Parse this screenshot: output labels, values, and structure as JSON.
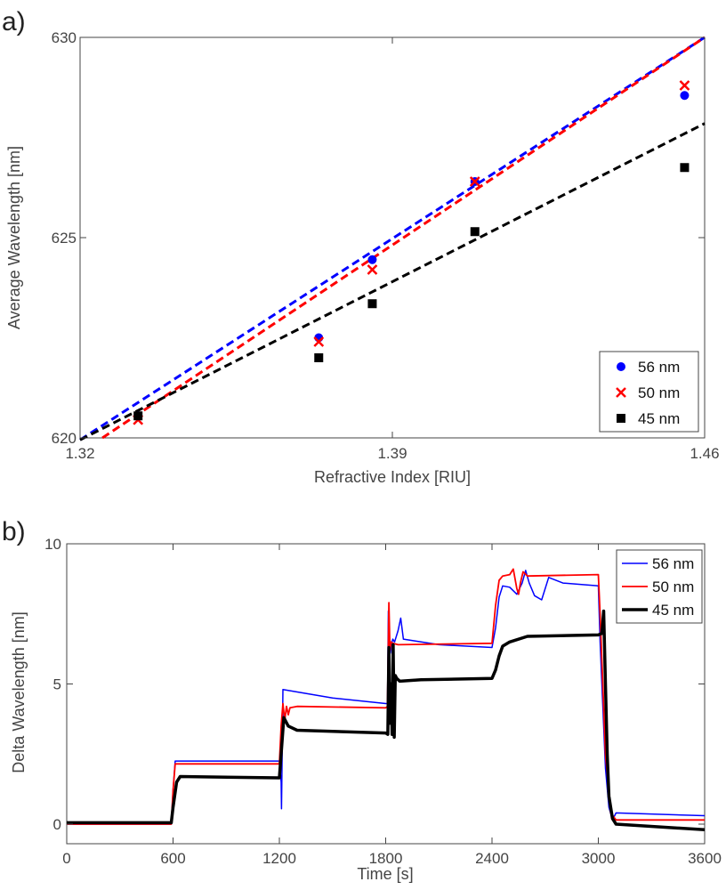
{
  "chart_data": [
    {
      "panel_label": "a)",
      "type": "scatter",
      "xlabel": "Refractive Index [RIU]",
      "ylabel": "Average Wavelength [nm]",
      "xlim": [
        1.32,
        1.46
      ],
      "ylim": [
        620,
        630
      ],
      "xticks": [
        "1.32",
        "1.39",
        "1.46"
      ],
      "yticks": [
        "620",
        "625",
        "630"
      ],
      "grid": false,
      "legend_position": "bottom-right",
      "series": [
        {
          "name": "56 nm",
          "color": "#0000ff",
          "marker": "circle",
          "x": [
            1.333,
            1.3735,
            1.3855,
            1.4085,
            1.4555
          ],
          "y": [
            620.55,
            622.5,
            624.45,
            626.4,
            628.55
          ],
          "fit": {
            "x": [
              1.32,
              1.46
            ],
            "y": [
              619.95,
              630.0
            ]
          }
        },
        {
          "name": "50 nm",
          "color": "#ff0000",
          "marker": "x",
          "x": [
            1.333,
            1.3735,
            1.3855,
            1.4085,
            1.4555
          ],
          "y": [
            620.45,
            622.4,
            624.2,
            626.4,
            628.8
          ],
          "fit": {
            "x": [
              1.325,
              1.46
            ],
            "y": [
              620.0,
              630.0
            ]
          }
        },
        {
          "name": "45 nm",
          "color": "#000000",
          "marker": "square",
          "x": [
            1.333,
            1.3735,
            1.3855,
            1.4085,
            1.4555
          ],
          "y": [
            620.55,
            622.0,
            623.35,
            625.15,
            626.75
          ],
          "fit": {
            "x": [
              1.32,
              1.46
            ],
            "y": [
              619.95,
              627.85
            ]
          }
        }
      ]
    },
    {
      "panel_label": "b)",
      "type": "line",
      "xlabel": "Time [s]",
      "ylabel": "Delta Wavelength [nm]",
      "xlim": [
        0,
        3600
      ],
      "ylim": [
        0,
        10
      ],
      "xticks": [
        "0",
        "600",
        "1200",
        "1800",
        "2400",
        "3000",
        "3600"
      ],
      "yticks": [
        "0",
        "5",
        "10"
      ],
      "grid": false,
      "legend_position": "top-right",
      "series": [
        {
          "name": "56 nm",
          "color": "#0000ff",
          "width": 1.5,
          "x": [
            0,
            590,
            600,
            612,
            1200,
            1210,
            1212,
            1220,
            1500,
            1800,
            1810,
            1815,
            1820,
            1826,
            1832,
            1840,
            1850,
            1870,
            1885,
            1900,
            2100,
            2400,
            2420,
            2440,
            2460,
            2500,
            2540,
            2570,
            2590,
            2610,
            2640,
            2680,
            2720,
            2800,
            3000,
            3010,
            3040,
            3060,
            3080,
            3100,
            3600
          ],
          "y": [
            0.0,
            0.0,
            1.2,
            2.25,
            2.25,
            1.5,
            0.55,
            4.8,
            4.5,
            4.3,
            4.3,
            7.6,
            6.4,
            6.1,
            6.4,
            6.6,
            6.5,
            6.9,
            7.35,
            6.6,
            6.4,
            6.3,
            7.0,
            8.1,
            8.5,
            8.45,
            8.2,
            8.6,
            9.05,
            8.6,
            8.15,
            8.0,
            8.8,
            8.6,
            8.5,
            6.5,
            2.0,
            0.6,
            0.15,
            0.4,
            0.3
          ]
        },
        {
          "name": "50 nm",
          "color": "#ff0000",
          "width": 1.8,
          "x": [
            0,
            590,
            600,
            612,
            1200,
            1210,
            1220,
            1230,
            1240,
            1250,
            1260,
            1300,
            1800,
            1810,
            1818,
            1824,
            1830,
            1840,
            1870,
            2400,
            2420,
            2440,
            2460,
            2500,
            2520,
            2540,
            2550,
            2560,
            2575,
            2600,
            3000,
            3010,
            3040,
            3070,
            3100,
            3600
          ],
          "y": [
            0.0,
            0.0,
            1.2,
            2.15,
            2.15,
            3.5,
            4.3,
            3.7,
            4.2,
            3.9,
            4.15,
            4.2,
            4.15,
            4.2,
            7.9,
            6.2,
            6.5,
            6.45,
            6.4,
            6.45,
            7.8,
            8.7,
            8.85,
            8.9,
            9.1,
            8.4,
            8.2,
            8.6,
            9.0,
            8.85,
            8.9,
            7.5,
            2.5,
            0.4,
            0.15,
            0.15
          ]
        },
        {
          "name": "45 nm",
          "color": "#000000",
          "width": 3.5,
          "x": [
            0,
            590,
            600,
            620,
            640,
            1200,
            1210,
            1225,
            1250,
            1300,
            1800,
            1812,
            1818,
            1824,
            1830,
            1836,
            1842,
            1848,
            1854,
            1862,
            1880,
            2000,
            2400,
            2420,
            2440,
            2460,
            2500,
            2600,
            3000,
            3020,
            3030,
            3040,
            3050,
            3060,
            3080,
            3100,
            3600
          ],
          "y": [
            0.05,
            0.05,
            0.6,
            1.5,
            1.7,
            1.65,
            2.5,
            3.8,
            3.5,
            3.35,
            3.25,
            3.2,
            6.3,
            3.6,
            5.0,
            3.2,
            6.4,
            3.1,
            5.3,
            5.2,
            5.1,
            5.15,
            5.2,
            5.5,
            6.0,
            6.35,
            6.5,
            6.7,
            6.75,
            6.8,
            7.6,
            5.0,
            2.5,
            1.0,
            0.2,
            0.0,
            -0.2
          ]
        }
      ]
    }
  ]
}
